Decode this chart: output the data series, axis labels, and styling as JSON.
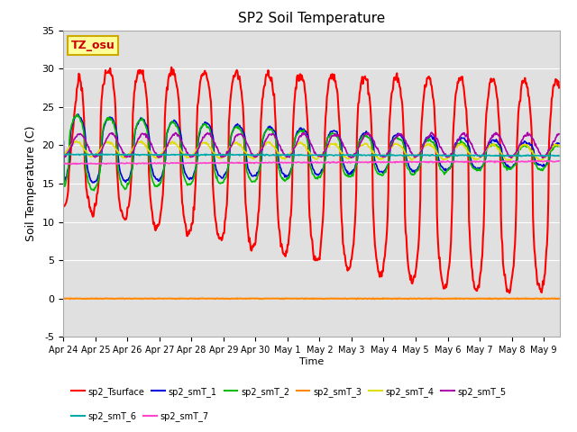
{
  "title": "SP2 Soil Temperature",
  "xlabel": "Time",
  "ylabel": "Soil Temperature (C)",
  "ylim": [
    -5,
    35
  ],
  "bg_color": "#e0e0e0",
  "fig_color": "#ffffff",
  "annotation_text": "TZ_osu",
  "annotation_color": "#cc0000",
  "annotation_bg": "#ffff99",
  "annotation_border": "#ccaa00",
  "series_names": [
    "sp2_Tsurface",
    "sp2_smT_1",
    "sp2_smT_2",
    "sp2_smT_3",
    "sp2_smT_4",
    "sp2_smT_5",
    "sp2_smT_6",
    "sp2_smT_7"
  ],
  "series_colors": [
    "#ff0000",
    "#0000dd",
    "#00bb00",
    "#ff8800",
    "#dddd00",
    "#aa00aa",
    "#00aaaa",
    "#ff44cc"
  ],
  "series_lw": [
    1.5,
    1.2,
    1.2,
    1.5,
    1.2,
    1.2,
    1.2,
    1.2
  ],
  "xtick_labels": [
    "Apr 24",
    "Apr 25",
    "Apr 26",
    "Apr 27",
    "Apr 28",
    "Apr 29",
    "Apr 30",
    "May 1",
    "May 2",
    "May 3",
    "May 4",
    "May 5",
    "May 6",
    "May 7",
    "May 8",
    "May 9"
  ],
  "ytick_values": [
    -5,
    0,
    5,
    10,
    15,
    20,
    25,
    30,
    35
  ],
  "grid_color": "#cccccc"
}
